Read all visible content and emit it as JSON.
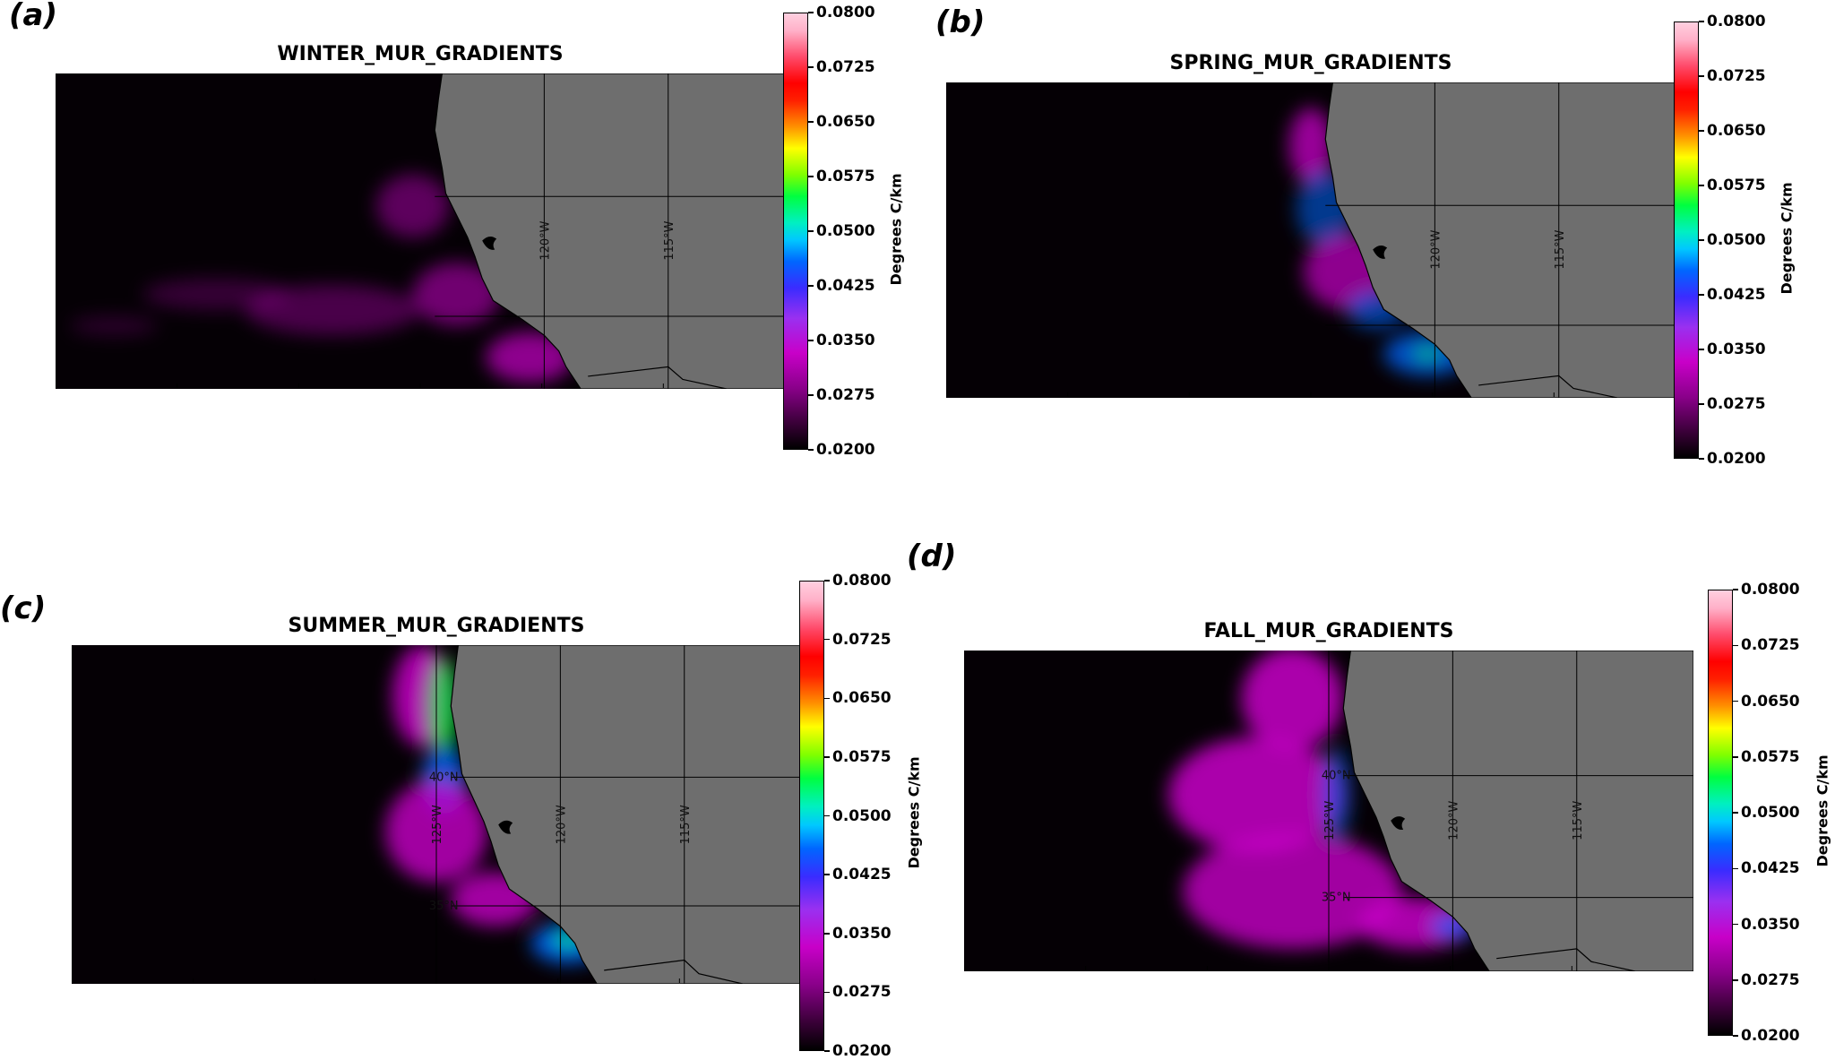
{
  "panels": [
    {
      "id": "a",
      "label": "(a)",
      "title": "WINTER_MUR_GRADIENTS",
      "season": "winter",
      "lon_labels": [
        "120°W",
        "115°W"
      ],
      "lat_labels": []
    },
    {
      "id": "b",
      "label": "(b)",
      "title": "SPRING_MUR_GRADIENTS",
      "season": "spring",
      "lon_labels": [
        "120°W",
        "115°W"
      ],
      "lat_labels": []
    },
    {
      "id": "c",
      "label": "(c)",
      "title": "SUMMER_MUR_GRADIENTS",
      "season": "summer",
      "lon_labels": [
        "125°W",
        "120°W",
        "115°W"
      ],
      "lat_labels": [
        "40°N",
        "35°N"
      ]
    },
    {
      "id": "d",
      "label": "(d)",
      "title": "FALL_MUR_GRADIENTS",
      "season": "fall",
      "lon_labels": [
        "125°W",
        "120°W",
        "115°W"
      ],
      "lat_labels": [
        "40°N",
        "35°N"
      ]
    }
  ],
  "colorbar": {
    "label": "Degrees C/km",
    "ticks": [
      "0.0800",
      "0.0725",
      "0.0650",
      "0.0575",
      "0.0500",
      "0.0425",
      "0.0350",
      "0.0275",
      "0.0200"
    ],
    "min": 0.02,
    "max": 0.08
  },
  "colors": {
    "ocean": "#050005",
    "land": "#6e6e6e",
    "grid": "#000000",
    "low_gradient": "#c800c8",
    "mid_gradient": "#0066ff",
    "high_gradient": "#00ff40"
  }
}
